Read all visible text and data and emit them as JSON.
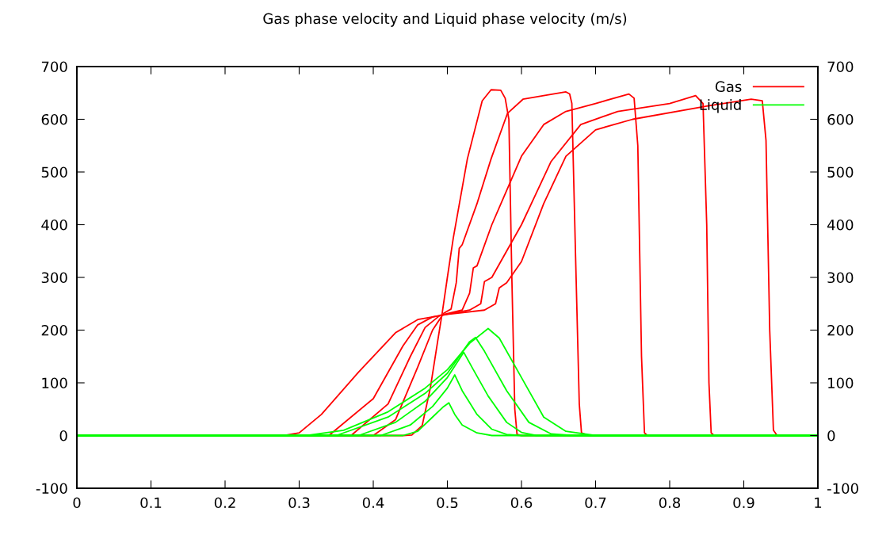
{
  "chart_data": {
    "type": "line",
    "title": "Gas phase velocity and Liquid phase velocity (m/s)",
    "xlim": [
      0,
      1
    ],
    "xticks": [
      0,
      0.1,
      0.2,
      0.3,
      0.4,
      0.5,
      0.6,
      0.7,
      0.8,
      0.9,
      1
    ],
    "ylim": [
      -100,
      700
    ],
    "yticks": [
      -100,
      0,
      100,
      200,
      300,
      400,
      500,
      600,
      700
    ],
    "y2lim": [
      -100,
      700
    ],
    "y2ticks": [
      -100,
      0,
      100,
      200,
      300,
      400,
      500,
      600,
      700
    ],
    "grid": false,
    "legend": "top right",
    "marker": "none",
    "line_style": "solid",
    "series": [
      {
        "name": "Gas",
        "color": "#ff0000",
        "x": [
          0,
          0.44,
          0.452,
          0.466,
          0.477,
          0.487,
          0.493,
          0.5,
          0.508,
          0.527,
          0.547,
          0.559,
          0.572,
          0.578,
          0.583,
          0.587,
          0.591,
          0.594,
          0.6,
          1
        ],
        "values": [
          0,
          0,
          1,
          19,
          90,
          180,
          232,
          300,
          375,
          525,
          635,
          656,
          655,
          640,
          600,
          300,
          50,
          2,
          0,
          0
        ]
      },
      {
        "color": "#ff0000",
        "x": [
          0,
          0.4,
          0.43,
          0.46,
          0.48,
          0.495,
          0.505,
          0.512,
          0.516,
          0.52,
          0.54,
          0.559,
          0.581,
          0.602,
          0.63,
          0.66,
          0.665,
          0.668,
          0.673,
          0.678,
          0.681,
          0.69,
          1
        ],
        "values": [
          0,
          0,
          30,
          130,
          200,
          232,
          240,
          290,
          355,
          362,
          440,
          525,
          611,
          638,
          645,
          652,
          648,
          630,
          340,
          60,
          5,
          0,
          0
        ]
      },
      {
        "color": "#ff0000",
        "x": [
          0,
          0.37,
          0.42,
          0.45,
          0.47,
          0.49,
          0.52,
          0.53,
          0.535,
          0.54,
          0.56,
          0.6,
          0.63,
          0.66,
          0.7,
          0.745,
          0.752,
          0.757,
          0.762,
          0.766,
          0.77,
          1
        ],
        "values": [
          0,
          0,
          60,
          150,
          205,
          228,
          238,
          270,
          318,
          322,
          400,
          530,
          590,
          615,
          630,
          648,
          640,
          550,
          150,
          5,
          0,
          0
        ]
      },
      {
        "color": "#ff0000",
        "x": [
          0,
          0.34,
          0.4,
          0.44,
          0.46,
          0.48,
          0.53,
          0.545,
          0.55,
          0.56,
          0.6,
          0.64,
          0.68,
          0.73,
          0.8,
          0.835,
          0.845,
          0.85,
          0.853,
          0.856,
          0.86,
          1
        ],
        "values": [
          0,
          0,
          70,
          170,
          210,
          225,
          238,
          250,
          292,
          300,
          400,
          520,
          590,
          615,
          630,
          645,
          630,
          400,
          100,
          5,
          0,
          0
        ]
      },
      {
        "color": "#ff0000",
        "x": [
          0,
          0.28,
          0.3,
          0.33,
          0.38,
          0.43,
          0.46,
          0.5,
          0.55,
          0.565,
          0.57,
          0.58,
          0.6,
          0.63,
          0.66,
          0.7,
          0.75,
          0.85,
          0.91,
          0.925,
          0.93,
          0.935,
          0.94,
          0.945,
          1
        ],
        "values": [
          0,
          0,
          5,
          40,
          120,
          195,
          220,
          230,
          238,
          250,
          280,
          290,
          330,
          440,
          530,
          580,
          600,
          625,
          638,
          635,
          560,
          200,
          10,
          0,
          0
        ]
      },
      {
        "name": "Liquid",
        "color": "#00ff00",
        "x": [
          0,
          0.44,
          0.46,
          0.48,
          0.495,
          0.502,
          0.51,
          0.52,
          0.54,
          0.56,
          1
        ],
        "values": [
          0,
          0,
          8,
          35,
          55,
          62,
          40,
          20,
          5,
          0,
          0
        ]
      },
      {
        "color": "#00ff00",
        "x": [
          0,
          0.41,
          0.45,
          0.48,
          0.5,
          0.51,
          0.52,
          0.54,
          0.56,
          0.58,
          0.6,
          1
        ],
        "values": [
          0,
          0,
          20,
          55,
          90,
          115,
          85,
          40,
          12,
          2,
          0,
          0
        ]
      },
      {
        "color": "#00ff00",
        "x": [
          0,
          0.38,
          0.43,
          0.47,
          0.5,
          0.522,
          0.535,
          0.555,
          0.58,
          0.6,
          0.62,
          1
        ],
        "values": [
          0,
          0,
          25,
          65,
          110,
          158,
          125,
          75,
          25,
          6,
          0,
          0
        ]
      },
      {
        "color": "#00ff00",
        "x": [
          0,
          0.35,
          0.42,
          0.47,
          0.5,
          0.53,
          0.538,
          0.55,
          0.58,
          0.61,
          0.64,
          0.67,
          1
        ],
        "values": [
          0,
          0,
          35,
          80,
          118,
          178,
          186,
          160,
          85,
          25,
          3,
          0,
          0
        ]
      },
      {
        "color": "#00ff00",
        "x": [
          0,
          0.31,
          0.36,
          0.42,
          0.47,
          0.5,
          0.53,
          0.555,
          0.57,
          0.6,
          0.63,
          0.66,
          0.7,
          1
        ],
        "values": [
          0,
          0,
          10,
          45,
          90,
          125,
          175,
          203,
          185,
          110,
          35,
          8,
          0,
          0
        ]
      }
    ]
  }
}
